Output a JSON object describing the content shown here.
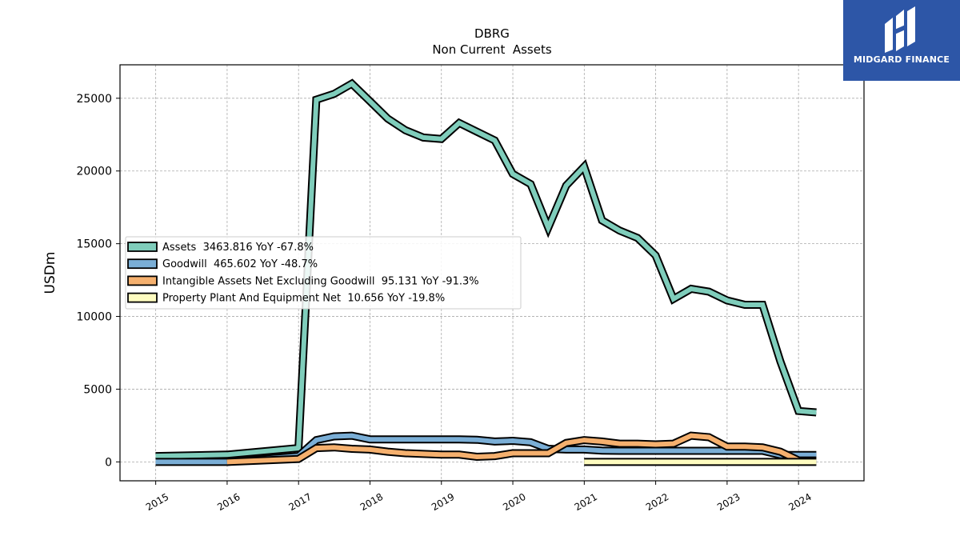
{
  "chart_data": {
    "type": "line",
    "title": "DBRG",
    "subtitle": "Non Current  Assets",
    "xlabel": "",
    "ylabel": "USDm",
    "xlim": [
      "2014-07",
      "2024-12"
    ],
    "ylim": [
      -1300,
      27300
    ],
    "x_ticks": [
      "2015",
      "2016",
      "2017",
      "2018",
      "2019",
      "2020",
      "2021",
      "2022",
      "2023",
      "2024"
    ],
    "y_ticks": [
      0,
      5000,
      10000,
      15000,
      20000,
      25000
    ],
    "grid": true,
    "legend_position": "center-left",
    "series": [
      {
        "name": "Assets  3463.816 YoY -67.8%",
        "color": "#7fcdbb",
        "points": [
          [
            "2014-12-31",
            400
          ],
          [
            "2015-12-31",
            500
          ],
          [
            "2016-12-31",
            950
          ],
          [
            "2017-03-31",
            24900
          ],
          [
            "2017-06-30",
            25300
          ],
          [
            "2017-09-30",
            26000
          ],
          [
            "2017-12-31",
            24800
          ],
          [
            "2018-03-31",
            23600
          ],
          [
            "2018-06-30",
            22800
          ],
          [
            "2018-09-30",
            22300
          ],
          [
            "2018-12-31",
            22200
          ],
          [
            "2019-03-31",
            23300
          ],
          [
            "2019-06-30",
            22700
          ],
          [
            "2019-09-30",
            22100
          ],
          [
            "2019-12-31",
            19800
          ],
          [
            "2020-03-31",
            19100
          ],
          [
            "2020-06-30",
            16100
          ],
          [
            "2020-09-30",
            19000
          ],
          [
            "2020-12-31",
            20300
          ],
          [
            "2021-03-31",
            16600
          ],
          [
            "2021-06-30",
            15900
          ],
          [
            "2021-09-30",
            15400
          ],
          [
            "2021-12-31",
            14200
          ],
          [
            "2022-03-31",
            11200
          ],
          [
            "2022-06-30",
            11900
          ],
          [
            "2022-09-30",
            11700
          ],
          [
            "2022-12-31",
            11100
          ],
          [
            "2023-03-31",
            10800
          ],
          [
            "2023-06-30",
            10800
          ],
          [
            "2023-09-30",
            6900
          ],
          [
            "2023-12-31",
            3500
          ],
          [
            "2024-03-31",
            3400
          ]
        ]
      },
      {
        "name": "Goodwill  465.602 YoY -48.7%",
        "color": "#7aaed6",
        "points": [
          [
            "2014-12-31",
            0
          ],
          [
            "2015-12-31",
            0
          ],
          [
            "2016-12-31",
            400
          ],
          [
            "2017-03-31",
            1500
          ],
          [
            "2017-06-30",
            1750
          ],
          [
            "2017-09-30",
            1800
          ],
          [
            "2017-12-31",
            1550
          ],
          [
            "2018-03-31",
            1550
          ],
          [
            "2018-06-30",
            1550
          ],
          [
            "2018-09-30",
            1550
          ],
          [
            "2018-12-31",
            1550
          ],
          [
            "2019-03-31",
            1550
          ],
          [
            "2019-06-30",
            1520
          ],
          [
            "2019-09-30",
            1400
          ],
          [
            "2019-12-31",
            1450
          ],
          [
            "2020-03-31",
            1350
          ],
          [
            "2020-06-30",
            900
          ],
          [
            "2020-09-30",
            850
          ],
          [
            "2020-12-31",
            850
          ],
          [
            "2021-03-31",
            780
          ],
          [
            "2021-06-30",
            760
          ],
          [
            "2021-09-30",
            760
          ],
          [
            "2021-12-31",
            760
          ],
          [
            "2022-03-31",
            760
          ],
          [
            "2022-06-30",
            760
          ],
          [
            "2022-09-30",
            760
          ],
          [
            "2022-12-31",
            760
          ],
          [
            "2023-03-31",
            760
          ],
          [
            "2023-06-30",
            760
          ],
          [
            "2023-09-30",
            470
          ],
          [
            "2023-12-31",
            470
          ],
          [
            "2024-03-31",
            470
          ]
        ]
      },
      {
        "name": "Intangible Assets Net Excluding Goodwill  95.131 YoY -91.3%",
        "color": "#f5b06e",
        "points": [
          [
            "2015-12-31",
            0
          ],
          [
            "2016-12-31",
            200
          ],
          [
            "2017-03-31",
            950
          ],
          [
            "2017-06-30",
            1000
          ],
          [
            "2017-09-30",
            900
          ],
          [
            "2017-12-31",
            850
          ],
          [
            "2018-03-31",
            700
          ],
          [
            "2018-06-30",
            600
          ],
          [
            "2018-09-30",
            550
          ],
          [
            "2018-12-31",
            500
          ],
          [
            "2019-03-31",
            500
          ],
          [
            "2019-06-30",
            350
          ],
          [
            "2019-09-30",
            400
          ],
          [
            "2019-12-31",
            600
          ],
          [
            "2020-03-31",
            600
          ],
          [
            "2020-06-30",
            600
          ],
          [
            "2020-09-30",
            1300
          ],
          [
            "2020-12-31",
            1500
          ],
          [
            "2021-03-31",
            1400
          ],
          [
            "2021-06-30",
            1250
          ],
          [
            "2021-09-30",
            1250
          ],
          [
            "2021-12-31",
            1200
          ],
          [
            "2022-03-31",
            1250
          ],
          [
            "2022-06-30",
            1800
          ],
          [
            "2022-09-30",
            1700
          ],
          [
            "2022-12-31",
            1050
          ],
          [
            "2023-03-31",
            1050
          ],
          [
            "2023-06-30",
            1000
          ],
          [
            "2023-09-30",
            700
          ],
          [
            "2023-12-31",
            100
          ],
          [
            "2024-03-31",
            95
          ]
        ]
      },
      {
        "name": "Property Plant And Equipment Net  10.656 YoY -19.8%",
        "color": "#fefcc0",
        "points": [
          [
            "2020-12-31",
            0
          ],
          [
            "2021-12-31",
            0
          ],
          [
            "2022-12-31",
            0
          ],
          [
            "2023-12-31",
            0
          ],
          [
            "2024-03-31",
            0
          ]
        ]
      }
    ]
  },
  "logo": {
    "text": "MIDGARD FINANCE"
  }
}
